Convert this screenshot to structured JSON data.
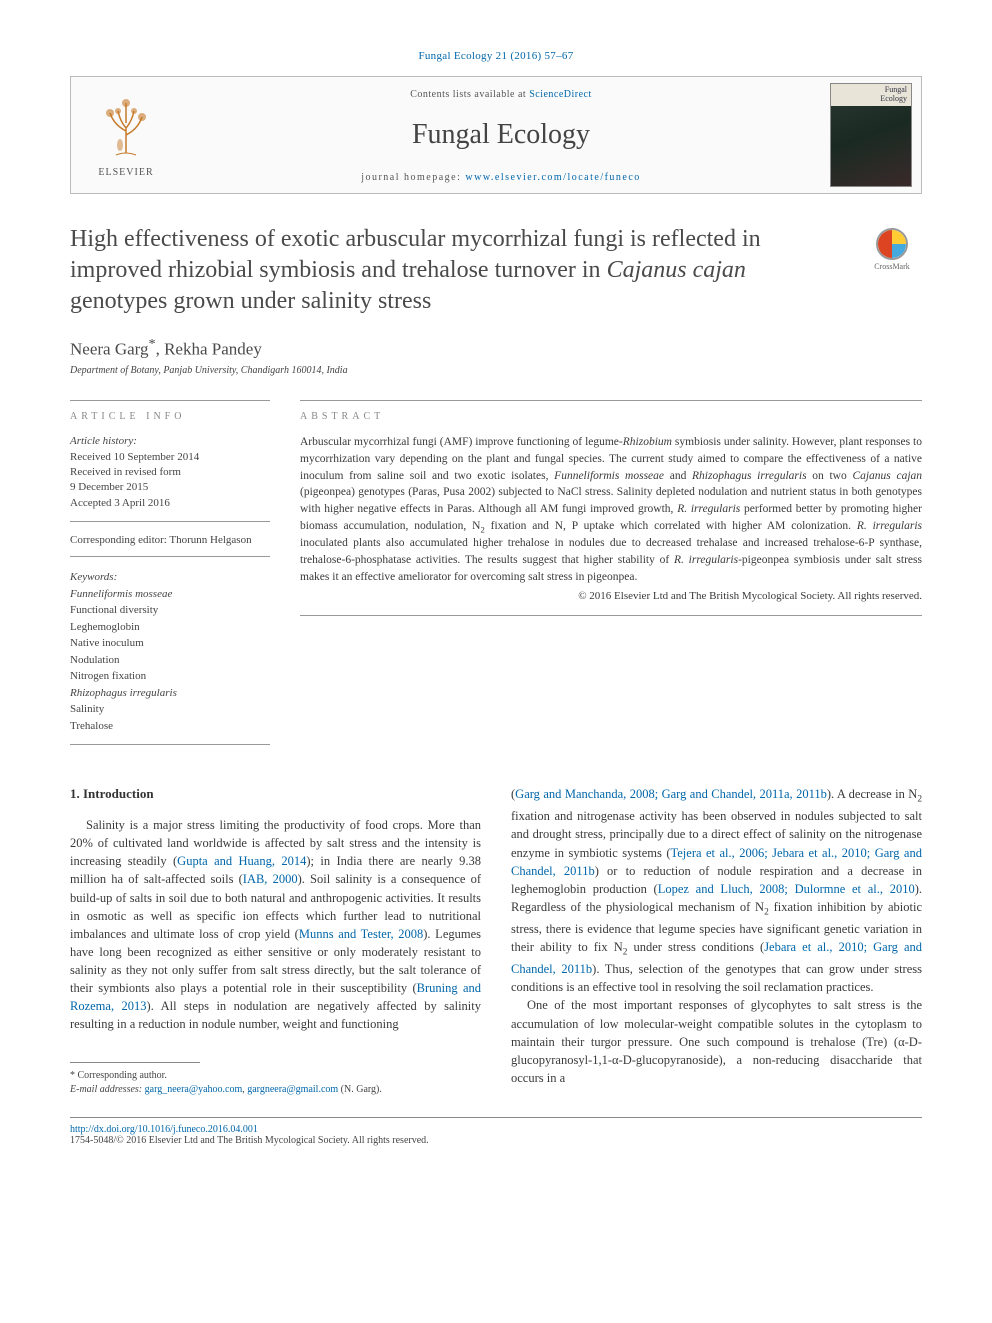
{
  "journal_ref": "Fungal Ecology 21 (2016) 57–67",
  "header": {
    "contents_prefix": "Contents lists available at ",
    "contents_link": "ScienceDirect",
    "journal_name": "Fungal Ecology",
    "homepage_prefix": "journal homepage: ",
    "homepage_url": "www.elsevier.com/locate/funeco",
    "publisher_name": "ELSEVIER",
    "cover_label_1": "Fungal",
    "cover_label_2": "Ecology"
  },
  "crossmark_label": "CrossMark",
  "title_html": "High effectiveness of exotic arbuscular mycorrhizal fungi is reflected in improved rhizobial symbiosis and trehalose turnover in <em>Cajanus cajan</em> genotypes grown under salinity stress",
  "authors_html": "Neera Garg<sup>*</sup>, Rekha Pandey",
  "affiliation": "Department of Botany, Panjab University, Chandigarh 160014, India",
  "info": {
    "label": "ARTICLE INFO",
    "history_label": "Article history:",
    "received": "Received 10 September 2014",
    "revised_1": "Received in revised form",
    "revised_2": "9 December 2015",
    "accepted": "Accepted 3 April 2016",
    "editor": "Corresponding editor: Thorunn Helgason",
    "keywords_label": "Keywords:",
    "keywords": [
      {
        "text": "Funneliformis mosseae",
        "italic": true
      },
      {
        "text": "Functional diversity",
        "italic": false
      },
      {
        "text": "Leghemoglobin",
        "italic": false
      },
      {
        "text": "Native inoculum",
        "italic": false
      },
      {
        "text": "Nodulation",
        "italic": false
      },
      {
        "text": "Nitrogen fixation",
        "italic": false
      },
      {
        "text": "Rhizophagus irregularis",
        "italic": true
      },
      {
        "text": "Salinity",
        "italic": false
      },
      {
        "text": "Trehalose",
        "italic": false
      }
    ]
  },
  "abstract": {
    "label": "ABSTRACT",
    "text_html": "Arbuscular mycorrhizal fungi (AMF) improve functioning of legume-<em>Rhizobium</em> symbiosis under salinity. However, plant responses to mycorrhization vary depending on the plant and fungal species. The current study aimed to compare the effectiveness of a native inoculum from saline soil and two exotic isolates, <em>Funneliformis mosseae</em> and <em>Rhizophagus irregularis</em> on two <em>Cajanus cajan</em> (pigeonpea) genotypes (Paras, Pusa 2002) subjected to NaCl stress. Salinity depleted nodulation and nutrient status in both genotypes with higher negative effects in Paras. Although all AM fungi improved growth, <em>R. irregularis</em> performed better by promoting higher biomass accumulation, nodulation, N<sub>2</sub> fixation and N, P uptake which correlated with higher AM colonization. <em>R. irregularis</em> inoculated plants also accumulated higher trehalose in nodules due to decreased trehalase and increased trehalose-6-P synthase, trehalose-6-phosphatase activities. The results suggest that higher stability of <em>R. irregularis</em>-pigeonpea symbiosis under salt stress makes it an effective ameliorator for overcoming salt stress in pigeonpea.",
    "copyright": "© 2016 Elsevier Ltd and The British Mycological Society. All rights reserved."
  },
  "body": {
    "section_heading": "1. Introduction",
    "col1_html": "Salinity is a major stress limiting the productivity of food crops. More than 20% of cultivated land worldwide is affected by salt stress and the intensity is increasing steadily (<a class='ref' href='#'>Gupta and Huang, 2014</a>); in India there are nearly 9.38 million ha of salt-affected soils (<a class='ref' href='#'>IAB, 2000</a>). Soil salinity is a consequence of build-up of salts in soil due to both natural and anthropogenic activities. It results in osmotic as well as specific ion effects which further lead to nutritional imbalances and ultimate loss of crop yield (<a class='ref' href='#'>Munns and Tester, 2008</a>). Legumes have long been recognized as either sensitive or only moderately resistant to salinity as they not only suffer from salt stress directly, but the salt tolerance of their symbionts also plays a potential role in their susceptibility (<a class='ref' href='#'>Bruning and Rozema, 2013</a>). All steps in nodulation are negatively affected by salinity resulting in a reduction in nodule number, weight and functioning",
    "col2_html": "(<a class='ref' href='#'>Garg and Manchanda, 2008; Garg and Chandel, 2011a, 2011b</a>). A decrease in N<sub>2</sub> fixation and nitrogenase activity has been observed in nodules subjected to salt and drought stress, principally due to a direct effect of salinity on the nitrogenase enzyme in symbiotic systems (<a class='ref' href='#'>Tejera et al., 2006; Jebara et al., 2010; Garg and Chandel, 2011b</a>) or to reduction of nodule respiration and a decrease in leghemoglobin production (<a class='ref' href='#'>Lopez and Lluch, 2008; Dulormne et al., 2010</a>). Regardless of the physiological mechanism of N<sub>2</sub> fixation inhibition by abiotic stress, there is evidence that legume species have significant genetic variation in their ability to fix N<sub>2</sub> under stress conditions (<a class='ref' href='#'>Jebara et al., 2010; Garg and Chandel, 2011b</a>). Thus, selection of the genotypes that can grow under stress conditions is an effective tool in resolving the soil reclamation practices.",
    "col2_p2_html": "One of the most important responses of glycophytes to salt stress is the accumulation of low molecular-weight compatible solutes in the cytoplasm to maintain their turgor pressure. One such compound is trehalose (Tre) (α-D-glucopyranosyl-1,1-α-D-glucopyranoside), a non-reducing disaccharide that occurs in a"
  },
  "footnotes": {
    "corr": "* Corresponding author.",
    "email_label": "E-mail addresses:",
    "email1": "garg_neera@yahoo.com",
    "email2": "gargneera@gmail.com",
    "email_suffix": "(N. Garg)."
  },
  "footer": {
    "doi": "http://dx.doi.org/10.1016/j.funeco.2016.04.001",
    "issn_line": "1754-5048/© 2016 Elsevier Ltd and The British Mycological Society. All rights reserved."
  },
  "colors": {
    "link": "#0066aa",
    "text": "#3a3a3a",
    "rule": "#999999"
  }
}
